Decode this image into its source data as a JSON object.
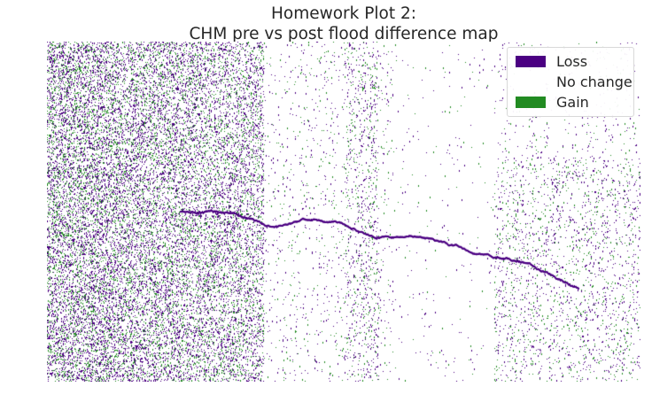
{
  "title": {
    "line1": "Homework Plot 2:",
    "line2": "CHM pre vs post flood difference map"
  },
  "legend": [
    {
      "label": "Loss",
      "color": "#4b0082"
    },
    {
      "label": "No change",
      "color": "#ffffff"
    },
    {
      "label": "Gain",
      "color": "#228b22"
    }
  ],
  "map": {
    "classes": [
      {
        "name": "Loss",
        "color": "#4b0082"
      },
      {
        "name": "No change",
        "color": "#ffffff"
      },
      {
        "name": "Gain",
        "color": "#228b22"
      }
    ]
  }
}
